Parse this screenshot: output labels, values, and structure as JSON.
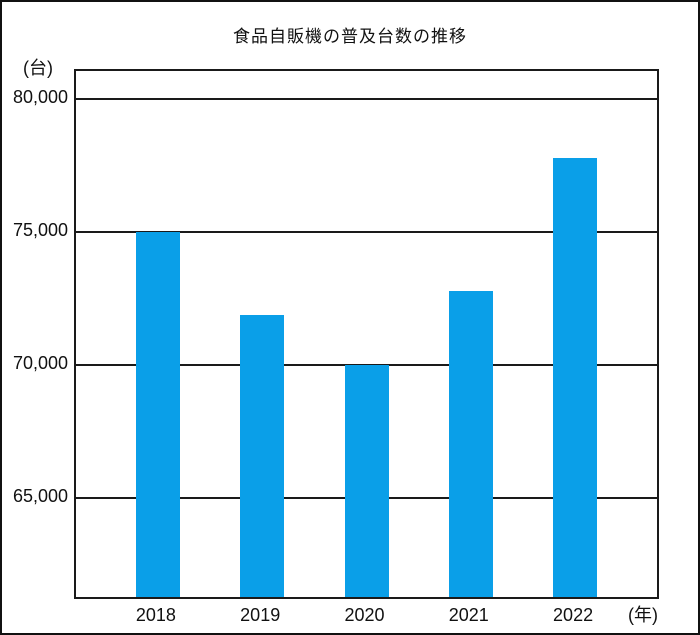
{
  "chart_data": {
    "type": "bar",
    "title": "食品自販機の普及台数の推移",
    "y_unit_label": "(台)",
    "x_unit_label": "(年)",
    "categories": [
      "2018",
      "2019",
      "2020",
      "2021",
      "2022"
    ],
    "values": [
      75000,
      71900,
      70000,
      72800,
      77800
    ],
    "yticks": [
      65000,
      70000,
      75000,
      80000
    ],
    "ytick_labels": [
      "65,000",
      "70,000",
      "75,000",
      "80,000"
    ],
    "ylim": [
      61300,
      81050
    ],
    "grid": true,
    "legend_position": "none",
    "bar_color": "#0A9FE8",
    "line_color": "#1A1A1A",
    "background_color": "#FFFFFF"
  }
}
